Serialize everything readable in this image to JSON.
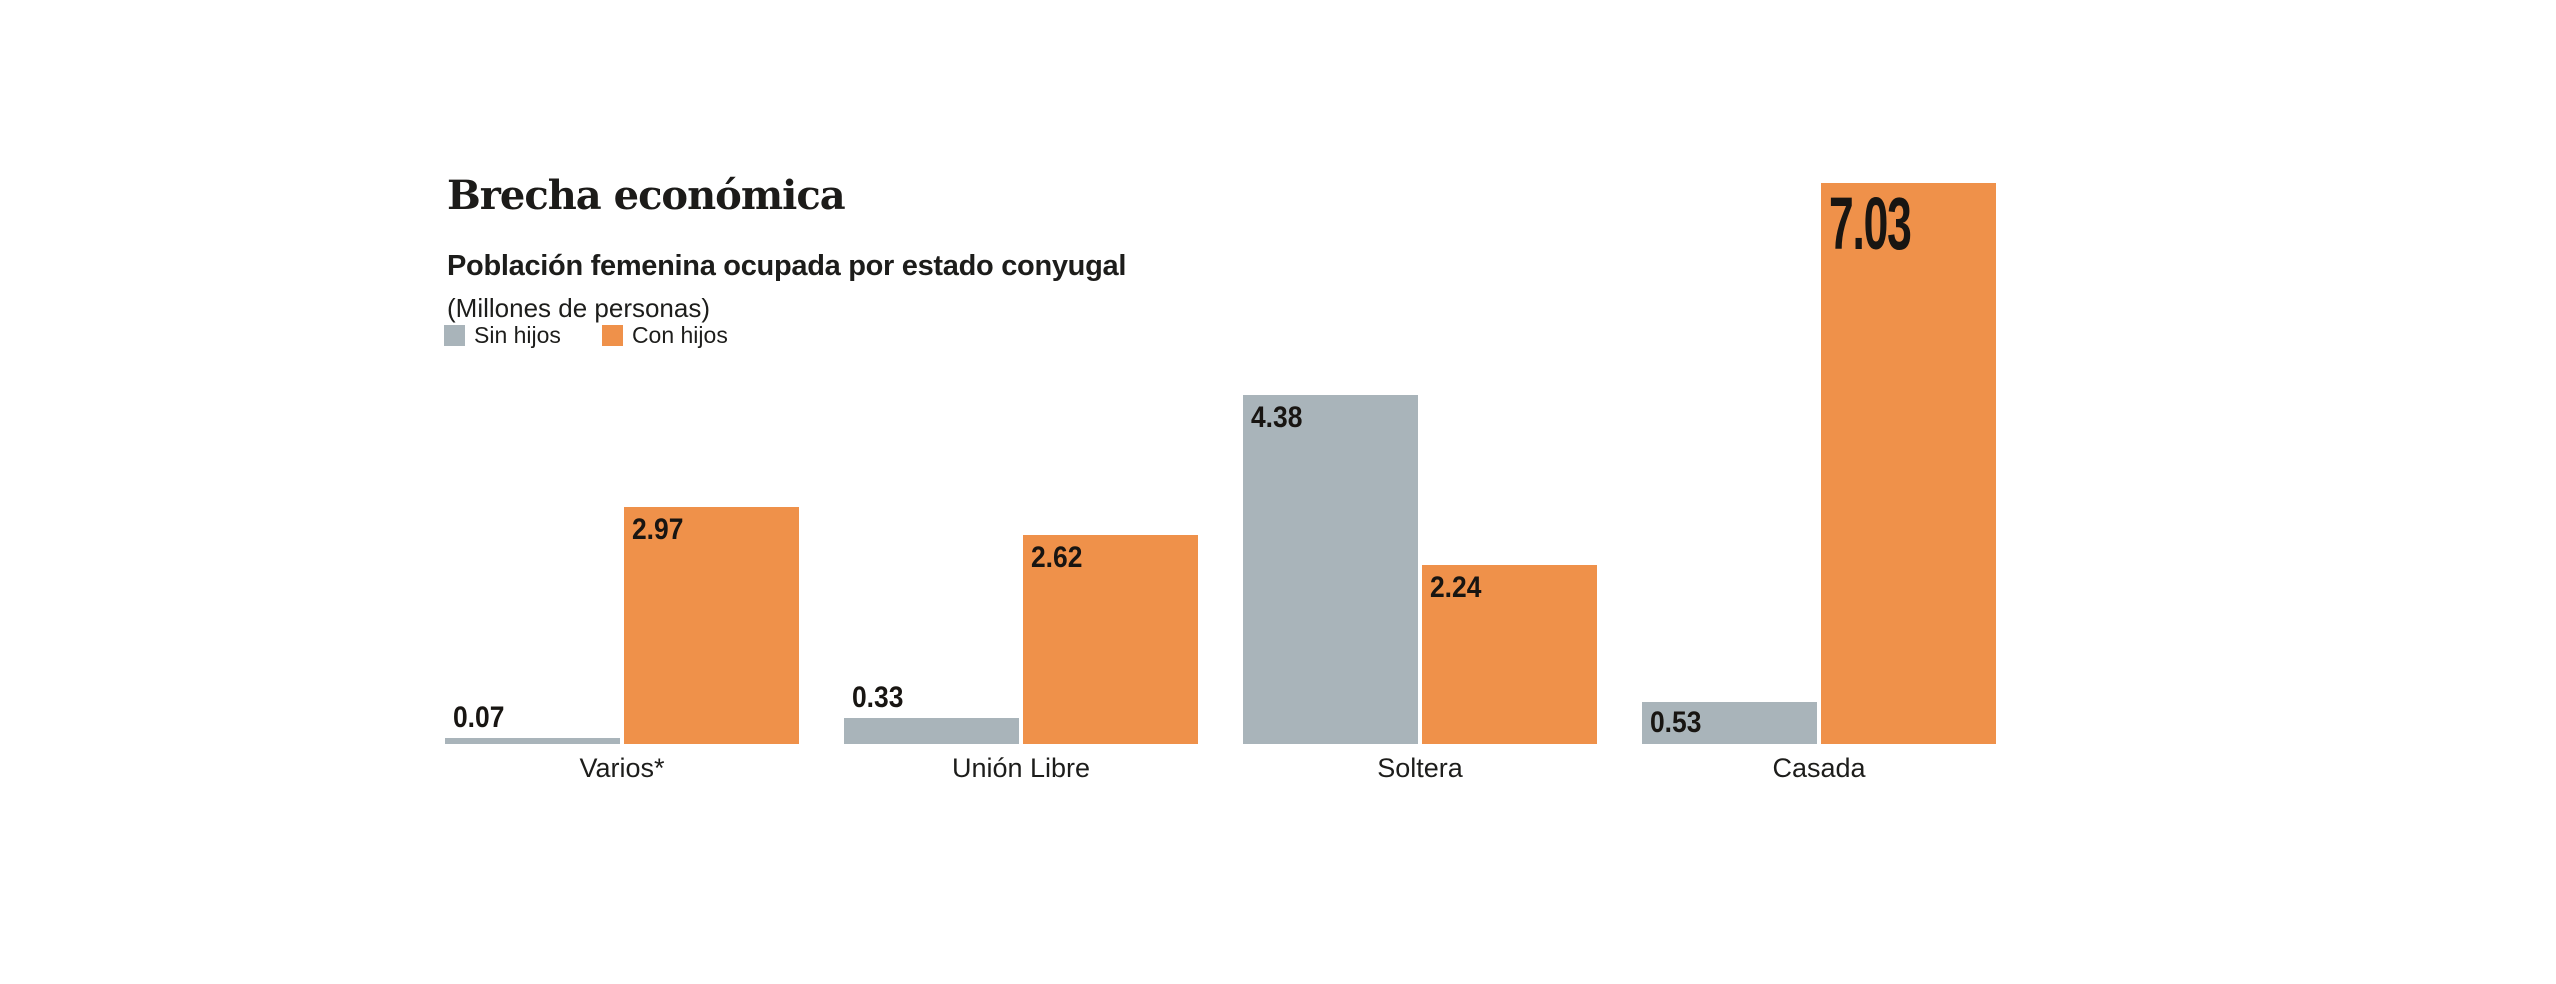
{
  "page": {
    "background": "#ffffff"
  },
  "header": {
    "title": "Brecha económica",
    "subtitle": "Población femenina ocupada por estado conyugal",
    "unit_note": "(Millones de personas)"
  },
  "legend": {
    "items": [
      {
        "label": "Sin hijos",
        "color": "#a9b4ba"
      },
      {
        "label": "Con hijos",
        "color": "#ef914a"
      }
    ]
  },
  "chart_data": {
    "type": "bar",
    "title": "Brecha económica",
    "subtitle": "Población femenina ocupada por estado conyugal",
    "unit": "Millones de personas",
    "categories": [
      "Varios*",
      "Unión Libre",
      "Soltera",
      "Casada"
    ],
    "series": [
      {
        "name": "Sin hijos",
        "color": "#a9b4ba",
        "values": [
          0.07,
          0.33,
          4.38,
          0.53
        ],
        "labels": [
          "0.07",
          "0.33",
          "4.38",
          "0.53"
        ],
        "label_placements": [
          "above",
          "above",
          "inside-top",
          "inside-center"
        ]
      },
      {
        "name": "Con hijos",
        "color": "#ef914a",
        "values": [
          2.97,
          2.62,
          2.24,
          7.03
        ],
        "labels": [
          "2.97",
          "2.62",
          "2.24",
          "7.03"
        ],
        "label_placements": [
          "inside-top",
          "inside-top",
          "inside-top",
          "inside-top large"
        ]
      }
    ],
    "ylim": [
      0,
      7.03
    ],
    "grid": false,
    "axes_visible": false,
    "legend_position": "top-left",
    "value_label_color": "#181512",
    "emphasized_label": "7.03"
  }
}
